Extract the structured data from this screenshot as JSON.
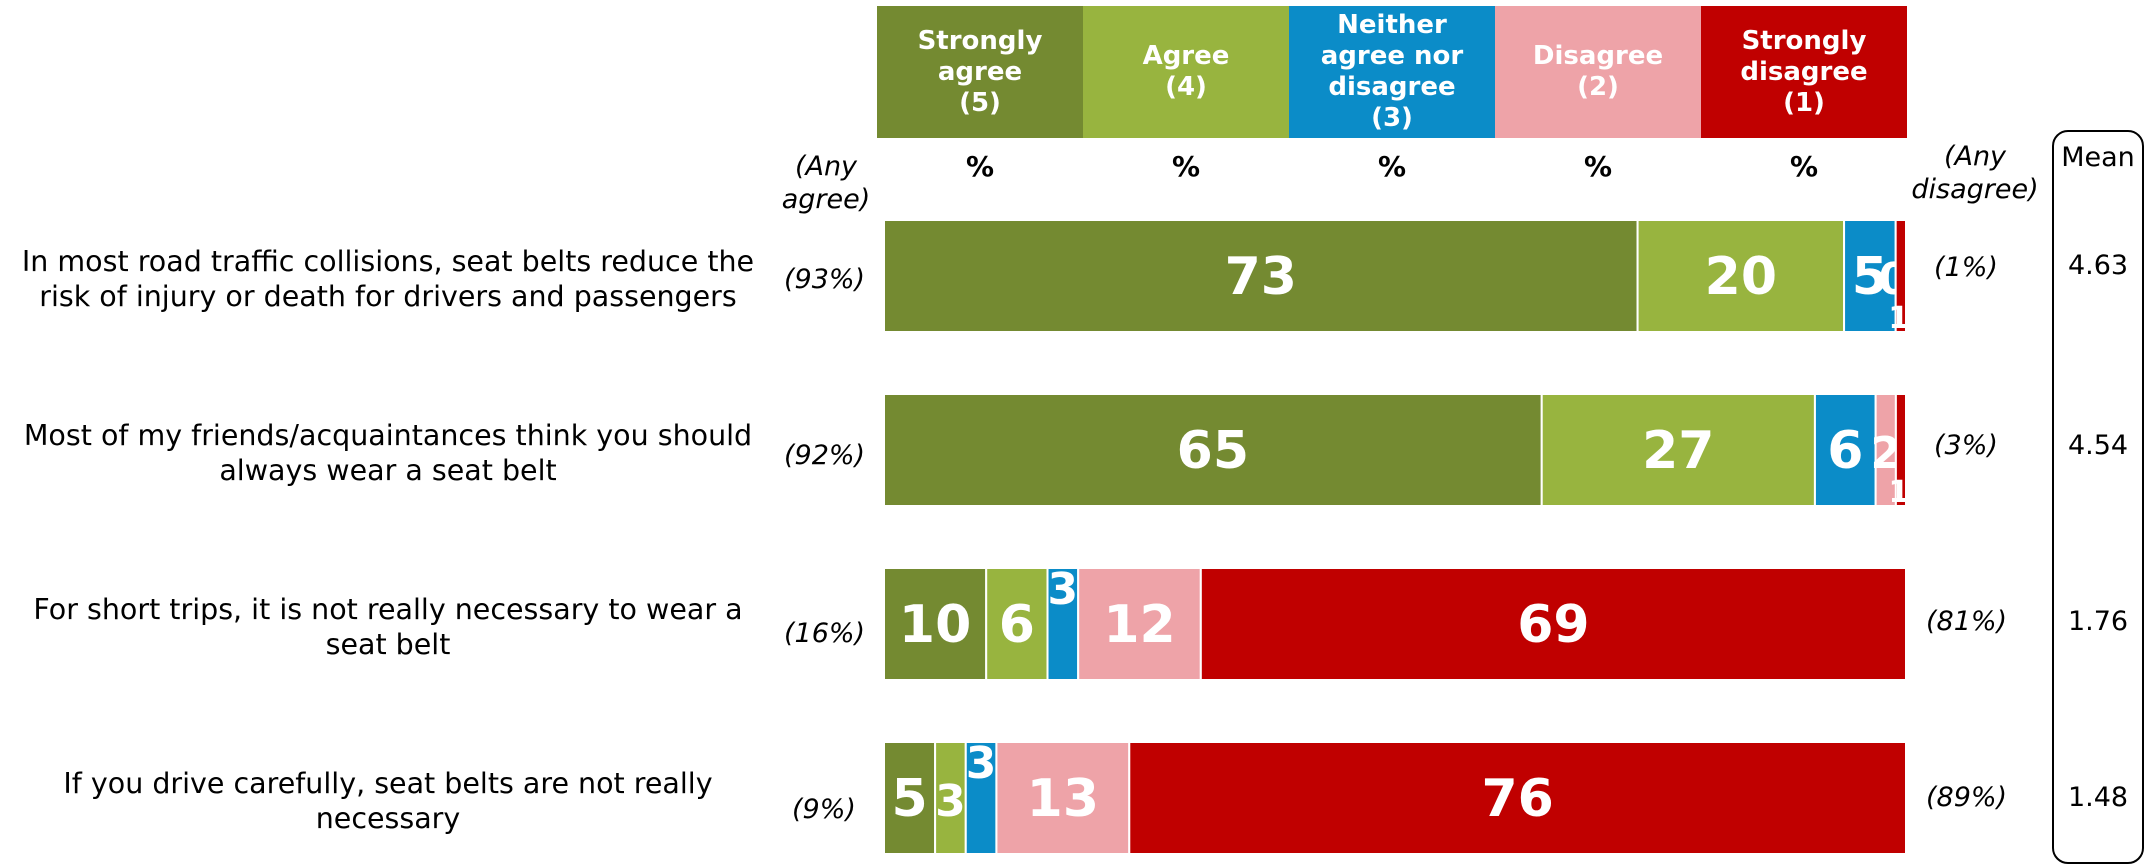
{
  "chart_data": {
    "type": "bar",
    "orientation": "horizontal",
    "stacked": true,
    "scale": "percent",
    "legend": [
      {
        "label": "Strongly agree (5)",
        "lines": [
          "Strongly",
          "agree",
          "(5)"
        ],
        "color": "#748a31"
      },
      {
        "label": "Agree (4)",
        "lines": [
          "Agree",
          "(4)"
        ],
        "color": "#98b43f"
      },
      {
        "label": "Neither agree nor disagree (3)",
        "lines": [
          "Neither",
          "agree nor",
          "disagree",
          "(3)"
        ],
        "color": "#0b8cc8"
      },
      {
        "label": "Disagree (2)",
        "lines": [
          "Disagree",
          "(2)"
        ],
        "color": "#eea3a8"
      },
      {
        "label": "Strongly disagree (1)",
        "lines": [
          "Strongly",
          "disagree",
          "(1)"
        ],
        "color": "#c00000"
      }
    ],
    "percent_symbol": "%",
    "any_agree_header": "(Any agree)",
    "any_disagree_header": "(Any disagree)",
    "mean_header": "Mean",
    "rows": [
      {
        "statement": "In most road traffic collisions, seat belts reduce the risk of injury or death for drivers and passengers",
        "values": [
          73,
          20,
          5,
          0,
          1
        ],
        "any_agree": "(93%)",
        "any_disagree": "(1%)",
        "mean": "4.63"
      },
      {
        "statement": "Most of my friends/acquaintances think you should always wear a seat belt",
        "values": [
          65,
          27,
          6,
          2,
          1
        ],
        "any_agree": "(92%)",
        "any_disagree": "(3%)",
        "mean": "4.54"
      },
      {
        "statement": "For short trips, it is not really necessary to wear a seat belt",
        "values": [
          10,
          6,
          3,
          12,
          69
        ],
        "any_agree": "(16%)",
        "any_disagree": "(81%)",
        "mean": "1.76"
      },
      {
        "statement": "If you drive carefully, seat belts are not really necessary",
        "values": [
          5,
          3,
          3,
          13,
          76
        ],
        "any_agree": "(9%)",
        "any_disagree": "(89%)",
        "mean": "1.48"
      }
    ]
  }
}
